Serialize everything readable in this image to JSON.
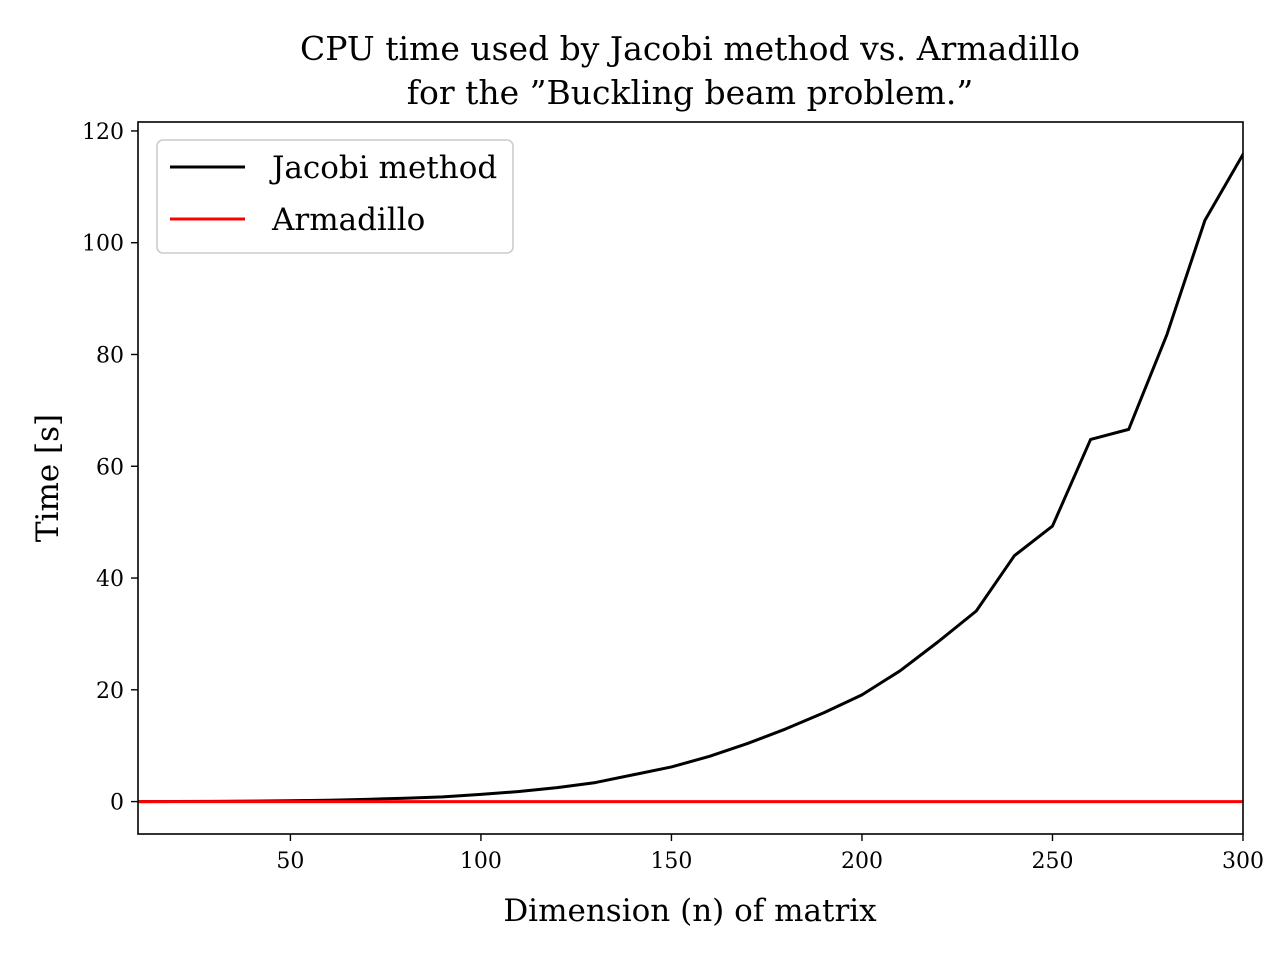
{
  "chart_data": {
    "type": "line",
    "title_lines": [
      "CPU time used by Jacobi method vs. Armadillo",
      "for the ”Buckling beam problem.”"
    ],
    "xlabel": "Dimension (n) of matrix",
    "ylabel": "Time [s]",
    "xlim": [
      10,
      300
    ],
    "ylim": [
      -5.8,
      121.6
    ],
    "xticks": [
      50,
      100,
      150,
      200,
      250,
      300
    ],
    "yticks": [
      0,
      20,
      40,
      60,
      80,
      100,
      120
    ],
    "grid": false,
    "legend_position": "top-left",
    "series": [
      {
        "name": "Jacobi method",
        "color": "#000000",
        "x": [
          10,
          20,
          30,
          40,
          50,
          60,
          70,
          80,
          90,
          100,
          110,
          120,
          130,
          140,
          150,
          160,
          170,
          180,
          190,
          200,
          210,
          220,
          230,
          240,
          250,
          260,
          270,
          280,
          290,
          300
        ],
        "y": [
          0,
          0.01,
          0.03,
          0.08,
          0.15,
          0.25,
          0.4,
          0.6,
          0.85,
          1.3,
          1.8,
          2.5,
          3.4,
          4.8,
          6.2,
          8.1,
          10.4,
          13,
          15.9,
          19.1,
          23.4,
          28.6,
          34.1,
          44,
          49.3,
          64.8,
          66.6,
          83.5,
          104,
          115.8
        ]
      },
      {
        "name": "Armadillo",
        "color": "#ff0000",
        "x": [
          10,
          20,
          30,
          40,
          50,
          60,
          70,
          80,
          90,
          100,
          110,
          120,
          130,
          140,
          150,
          160,
          170,
          180,
          190,
          200,
          210,
          220,
          230,
          240,
          250,
          260,
          270,
          280,
          290,
          300
        ],
        "y": [
          0,
          0,
          0,
          0,
          0,
          0,
          0,
          0,
          0,
          0,
          0,
          0,
          0,
          0,
          0,
          0,
          0,
          0,
          0,
          0,
          0,
          0,
          0,
          0,
          0,
          0,
          0,
          0,
          0,
          0
        ]
      }
    ]
  }
}
